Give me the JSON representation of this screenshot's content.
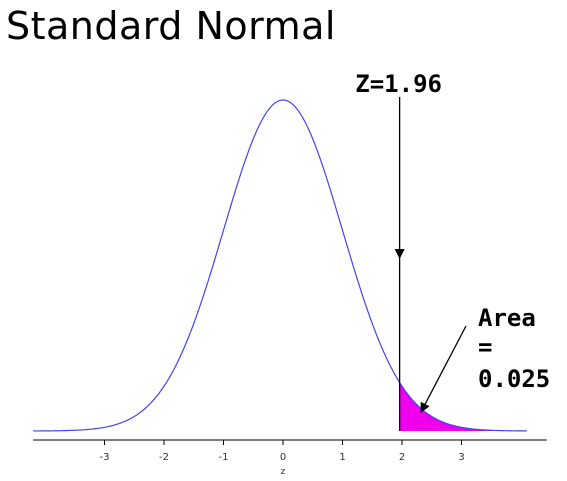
{
  "title": "Standard Normal",
  "chart_data": {
    "type": "area",
    "distribution": "standard normal",
    "mean": 0,
    "sd": 1,
    "xlabel": "z",
    "ylabel": "",
    "xlim": [
      -4.2,
      4.1
    ],
    "x_ticks": [
      -3,
      -2,
      -1,
      0,
      1,
      2,
      3
    ],
    "x_tick_labels": [
      "-3",
      "-2",
      "-1",
      "0",
      "1",
      "2",
      "3"
    ],
    "curve_color": "#4444ee",
    "shaded_region": {
      "from": 1.96,
      "to": 4.1,
      "color": "#ee00ee"
    },
    "annotations": {
      "z_label": "Z=1.96",
      "z_value": 1.96,
      "area_lines": [
        "Area",
        "=",
        "0.025"
      ]
    }
  }
}
